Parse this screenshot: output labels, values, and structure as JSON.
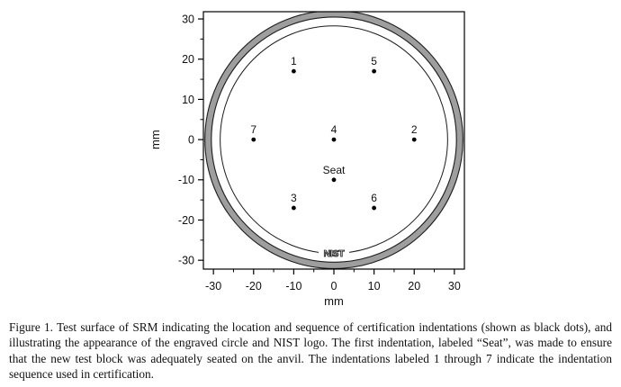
{
  "caption": {
    "text": "Figure 1.  Test surface of SRM indicating the location and sequence of certification indentations (shown as black dots), and illustrating the appearance of the engraved circle and NIST logo.  The first indentation, labeled “Seat”, was made to ensure that the new test block was adequately seated on the anvil.  The indentations labeled 1 through 7 indicate the indentation sequence used in certification."
  },
  "chart_data": {
    "type": "scatter",
    "title": "",
    "xlabel": "mm",
    "ylabel": "mm",
    "xlim": [
      -32.5,
      32.5
    ],
    "ylim": [
      -32.2,
      31.8
    ],
    "x_major_ticks": [
      -30,
      -20,
      -10,
      0,
      10,
      20,
      30
    ],
    "y_major_ticks": [
      -30,
      -20,
      -10,
      0,
      10,
      20,
      30
    ],
    "minor_tick_step": 5,
    "grid": false,
    "points": [
      {
        "label": "1",
        "x": -10,
        "y": 17
      },
      {
        "label": "5",
        "x": 10,
        "y": 17
      },
      {
        "label": "7",
        "x": -20,
        "y": 0
      },
      {
        "label": "4",
        "x": 0,
        "y": 0
      },
      {
        "label": "2",
        "x": 20,
        "y": 0
      },
      {
        "label": "Seat",
        "x": 0,
        "y": -10
      },
      {
        "label": "3",
        "x": -10,
        "y": -17
      },
      {
        "label": "6",
        "x": 10,
        "y": -17
      }
    ],
    "engraved_ring": {
      "outer_radius_mm": 32.1,
      "inner_radius_mm": 30.5,
      "fill_color": "#9e9e9e",
      "edge_color": "#1c1c1c"
    },
    "engraved_circle_radius_mm": 28.3,
    "logo": {
      "text": "NIST",
      "x_mm": 0,
      "y_mm": -28.2
    }
  },
  "colors": {
    "point": "#000000",
    "axis": "#000000",
    "background": "#ffffff"
  }
}
